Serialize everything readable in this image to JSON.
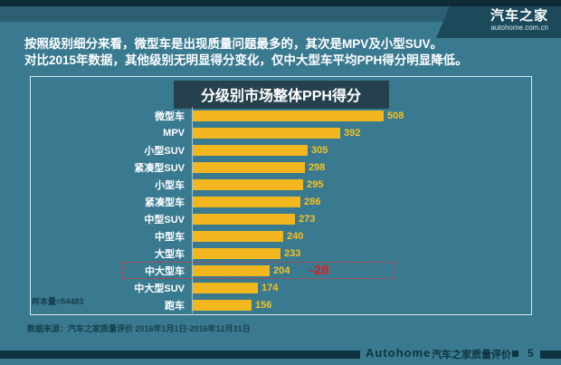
{
  "logo": {
    "title": "汽车之家",
    "subtitle": "autohome.com.cn"
  },
  "header": {
    "line1": "按照级别细分来看，微型车是出现质量问题最多的，其次是MPV及小型SUV。",
    "line2": "对比2015年数据，其他级别无明显得分变化，仅中大型车平均PPH得分明显降低。"
  },
  "chart_data": {
    "type": "bar",
    "orientation": "horizontal",
    "title": "分级别市场整体PPH得分",
    "categories": [
      "微型车",
      "MPV",
      "小型SUV",
      "紧凑型SUV",
      "小型车",
      "紧凑型车",
      "中型SUV",
      "中型车",
      "大型车",
      "中大型车",
      "中大型SUV",
      "跑车"
    ],
    "values": [
      508,
      392,
      305,
      298,
      295,
      286,
      273,
      240,
      233,
      204,
      174,
      156
    ],
    "xlim": [
      0,
      540
    ],
    "bar_color": "#f2b61e",
    "value_label_color": "#f5c21f",
    "highlight": {
      "category": "中大型车",
      "delta_label": "-28",
      "color": "#e01f1f"
    },
    "legend": "none",
    "grid": "off"
  },
  "sample_note": "样本量=54483",
  "source_note": "数据来源：汽车之家质量评价 2016年1月1日-2016年12月31日",
  "footer": {
    "brand": "Autohome",
    "label": "汽车之家质量评价",
    "page": "5"
  }
}
